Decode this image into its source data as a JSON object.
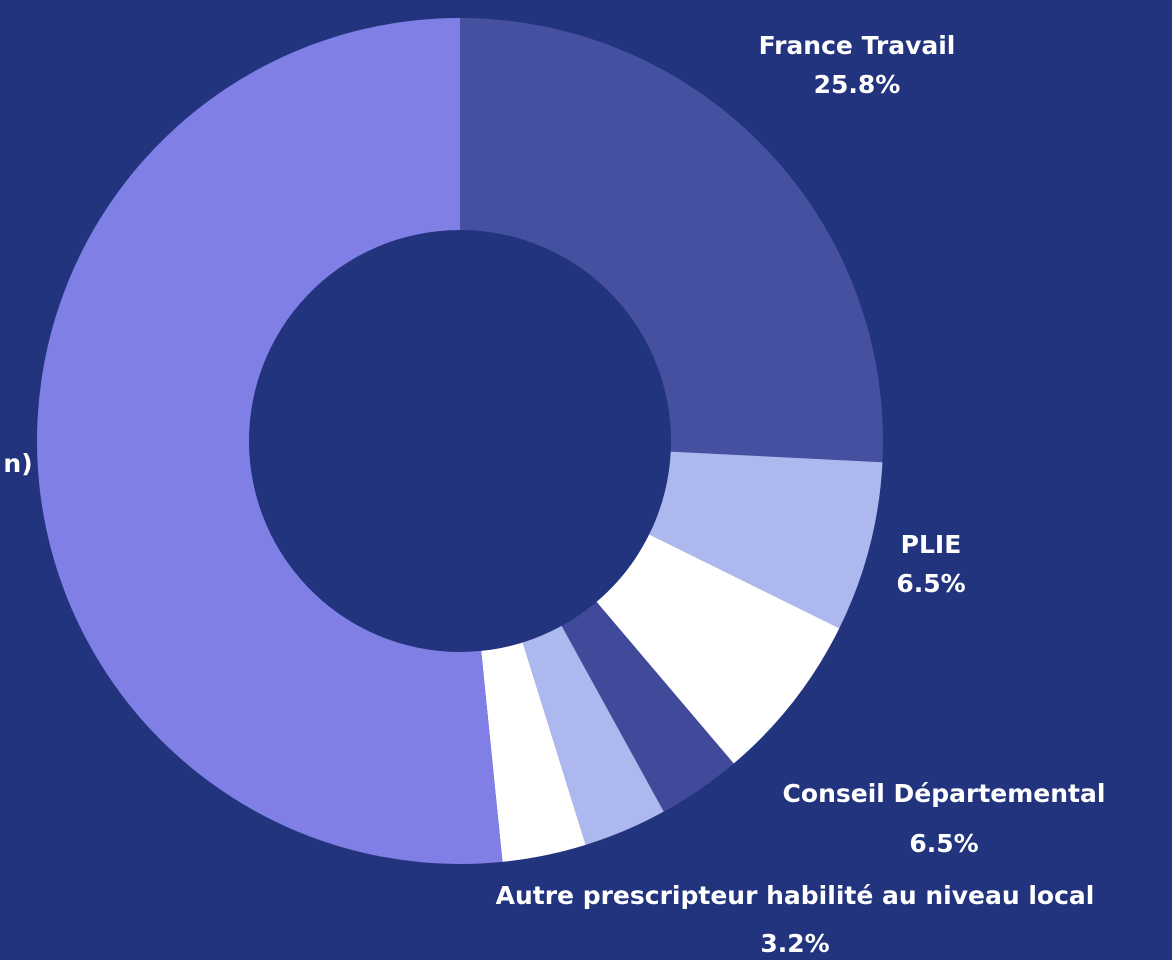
{
  "chart_data": {
    "type": "donut",
    "categories": [
      "France Travail",
      "PLIE",
      "Conseil Départemental",
      "Autre prescripteur habilité au niveau local",
      null,
      null,
      "n)"
    ],
    "values": [
      25.8,
      6.5,
      6.5,
      3.2,
      3.2,
      3.2,
      51.6
    ],
    "value_labels": [
      "25.8%",
      "6.5%",
      "6.5%",
      "3.2%",
      null,
      null,
      null
    ],
    "colors": [
      "#4650a0",
      "#adb8ee",
      "#ffffff",
      "#414a9a",
      "#adb8ee",
      "#ffffff",
      "#7f7fe6"
    ]
  }
}
